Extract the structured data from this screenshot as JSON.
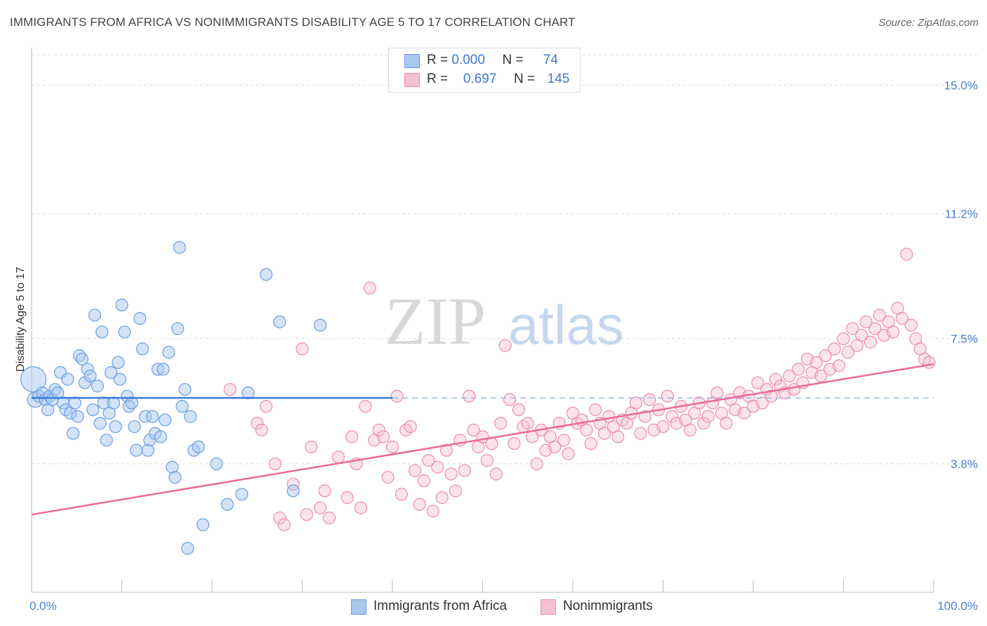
{
  "title": "IMMIGRANTS FROM AFRICA VS NONIMMIGRANTS DISABILITY AGE 5 TO 17 CORRELATION CHART",
  "source": "Source: ZipAtlas.com",
  "watermark": {
    "zip": "ZIP",
    "atlas": "atlas"
  },
  "legend": {
    "r_label": "R =",
    "n_label": "N =",
    "series1": {
      "r": "0.000",
      "n": "74"
    },
    "series2": {
      "r": "0.697",
      "n": "145"
    }
  },
  "bottom_legend": {
    "series1": "Immigrants from Africa",
    "series2": "Nonimmigrants"
  },
  "colors": {
    "series1_fill": "#a9c8ef",
    "series1_stroke": "#6a9fe0",
    "series1_line": "#3a7ad6",
    "series2_fill": "#f7c0d2",
    "series2_stroke": "#ec8cad",
    "series2_line": "#e8699a",
    "tick_text": "#4a7fd0",
    "grid": "#dddddd"
  },
  "chart_data": {
    "type": "scatter",
    "title": "IMMIGRANTS FROM AFRICA VS NONIMMIGRANTS DISABILITY AGE 5 TO 17 CORRELATION CHART",
    "xlabel": "",
    "ylabel": "Disability Age 5 to 17",
    "xlim": [
      0,
      100
    ],
    "ylim": [
      0,
      15.9
    ],
    "x_tick_labels": [
      "0.0%",
      "100.0%"
    ],
    "y_ticks": [
      3.8,
      7.5,
      11.2,
      15.0
    ],
    "y_tick_labels": [
      "3.8%",
      "7.5%",
      "11.2%",
      "15.0%"
    ],
    "grid": true,
    "legend_position": "top-center",
    "series": [
      {
        "name": "Immigrants from Africa",
        "r": 0.0,
        "n": 74,
        "trend": {
          "x": [
            0,
            40
          ],
          "y": [
            5.75,
            5.75
          ]
        },
        "trend_extension": {
          "x": [
            40,
            100
          ],
          "y": [
            5.75,
            5.75
          ]
        },
        "points": [
          [
            0.2,
            6.3
          ],
          [
            0.4,
            5.7
          ],
          [
            0.8,
            5.8
          ],
          [
            1.2,
            5.9
          ],
          [
            1.5,
            5.7
          ],
          [
            1.8,
            5.4
          ],
          [
            2.0,
            5.8
          ],
          [
            2.3,
            5.7
          ],
          [
            2.6,
            6.0
          ],
          [
            2.9,
            5.9
          ],
          [
            3.2,
            6.5
          ],
          [
            3.5,
            5.6
          ],
          [
            3.8,
            5.4
          ],
          [
            4.0,
            6.3
          ],
          [
            4.3,
            5.3
          ],
          [
            4.6,
            4.7
          ],
          [
            4.8,
            5.6
          ],
          [
            5.1,
            5.2
          ],
          [
            5.3,
            7.0
          ],
          [
            5.6,
            6.9
          ],
          [
            5.9,
            6.2
          ],
          [
            6.2,
            6.6
          ],
          [
            6.5,
            6.4
          ],
          [
            6.8,
            5.4
          ],
          [
            7.0,
            8.2
          ],
          [
            7.3,
            6.1
          ],
          [
            7.6,
            5.0
          ],
          [
            7.8,
            7.7
          ],
          [
            8.0,
            5.6
          ],
          [
            8.3,
            4.5
          ],
          [
            8.6,
            5.3
          ],
          [
            8.8,
            6.5
          ],
          [
            9.1,
            5.6
          ],
          [
            9.3,
            4.9
          ],
          [
            9.6,
            6.8
          ],
          [
            9.8,
            6.3
          ],
          [
            10.0,
            8.5
          ],
          [
            10.3,
            7.7
          ],
          [
            10.6,
            5.8
          ],
          [
            10.8,
            5.5
          ],
          [
            11.1,
            5.6
          ],
          [
            11.4,
            4.9
          ],
          [
            11.6,
            4.2
          ],
          [
            12.0,
            8.1
          ],
          [
            12.3,
            7.2
          ],
          [
            12.6,
            5.2
          ],
          [
            12.9,
            4.2
          ],
          [
            13.1,
            4.5
          ],
          [
            13.4,
            5.2
          ],
          [
            13.7,
            4.7
          ],
          [
            14.0,
            6.6
          ],
          [
            14.3,
            4.6
          ],
          [
            14.6,
            6.6
          ],
          [
            14.8,
            5.1
          ],
          [
            15.2,
            7.1
          ],
          [
            15.6,
            3.7
          ],
          [
            15.9,
            3.4
          ],
          [
            16.2,
            7.8
          ],
          [
            16.4,
            10.2
          ],
          [
            16.7,
            5.5
          ],
          [
            17.0,
            6.0
          ],
          [
            17.3,
            1.3
          ],
          [
            17.6,
            5.2
          ],
          [
            18.0,
            4.2
          ],
          [
            18.5,
            4.3
          ],
          [
            19.0,
            2.0
          ],
          [
            20.5,
            3.8
          ],
          [
            21.7,
            2.6
          ],
          [
            23.3,
            2.9
          ],
          [
            24.0,
            5.9
          ],
          [
            26.0,
            9.4
          ],
          [
            27.5,
            8.0
          ],
          [
            29.0,
            3.0
          ],
          [
            32.0,
            7.9
          ]
        ]
      },
      {
        "name": "Nonimmigrants",
        "r": 0.697,
        "n": 145,
        "trend": {
          "x": [
            0,
            100
          ],
          "y": [
            2.3,
            6.75
          ]
        },
        "points": [
          [
            22,
            6.0
          ],
          [
            25,
            5.0
          ],
          [
            25.5,
            4.8
          ],
          [
            26,
            5.5
          ],
          [
            27,
            3.8
          ],
          [
            27.5,
            2.2
          ],
          [
            28,
            2.0
          ],
          [
            29,
            3.2
          ],
          [
            30,
            7.2
          ],
          [
            30.5,
            2.3
          ],
          [
            31,
            4.3
          ],
          [
            32,
            2.5
          ],
          [
            32.5,
            3.0
          ],
          [
            33,
            2.2
          ],
          [
            34,
            4.0
          ],
          [
            35,
            2.8
          ],
          [
            35.5,
            4.6
          ],
          [
            36,
            3.8
          ],
          [
            36.5,
            2.5
          ],
          [
            37,
            5.5
          ],
          [
            37.5,
            9.0
          ],
          [
            38,
            4.5
          ],
          [
            38.5,
            4.8
          ],
          [
            39,
            4.6
          ],
          [
            39.5,
            3.4
          ],
          [
            40,
            4.3
          ],
          [
            40.5,
            5.8
          ],
          [
            41,
            2.9
          ],
          [
            41.5,
            4.8
          ],
          [
            42,
            4.9
          ],
          [
            42.5,
            3.6
          ],
          [
            43,
            2.6
          ],
          [
            43.5,
            3.3
          ],
          [
            44,
            3.9
          ],
          [
            44.5,
            2.4
          ],
          [
            45,
            3.7
          ],
          [
            45.5,
            2.8
          ],
          [
            46,
            4.2
          ],
          [
            46.5,
            3.5
          ],
          [
            47,
            3.0
          ],
          [
            47.5,
            4.5
          ],
          [
            48,
            3.6
          ],
          [
            48.5,
            5.8
          ],
          [
            49,
            4.8
          ],
          [
            49.5,
            4.3
          ],
          [
            50,
            4.6
          ],
          [
            50.5,
            3.9
          ],
          [
            51,
            4.4
          ],
          [
            51.5,
            3.5
          ],
          [
            52,
            5.0
          ],
          [
            52.5,
            7.3
          ],
          [
            53,
            5.7
          ],
          [
            53.5,
            4.4
          ],
          [
            54,
            5.4
          ],
          [
            54.5,
            4.9
          ],
          [
            55,
            5.0
          ],
          [
            55.5,
            4.6
          ],
          [
            56,
            3.8
          ],
          [
            56.5,
            4.8
          ],
          [
            57,
            4.2
          ],
          [
            57.5,
            4.6
          ],
          [
            58,
            4.3
          ],
          [
            58.5,
            5.0
          ],
          [
            59,
            4.5
          ],
          [
            59.5,
            4.1
          ],
          [
            60,
            5.3
          ],
          [
            60.5,
            5.0
          ],
          [
            61,
            5.1
          ],
          [
            61.5,
            4.8
          ],
          [
            62,
            4.4
          ],
          [
            62.5,
            5.4
          ],
          [
            63,
            5.0
          ],
          [
            63.5,
            4.7
          ],
          [
            64,
            5.2
          ],
          [
            64.5,
            4.9
          ],
          [
            65,
            4.6
          ],
          [
            65.5,
            5.1
          ],
          [
            66,
            5.0
          ],
          [
            66.5,
            5.3
          ],
          [
            67,
            5.6
          ],
          [
            67.5,
            4.7
          ],
          [
            68,
            5.2
          ],
          [
            68.5,
            5.7
          ],
          [
            69,
            4.8
          ],
          [
            69.5,
            5.4
          ],
          [
            70,
            4.9
          ],
          [
            70.5,
            5.8
          ],
          [
            71,
            5.2
          ],
          [
            71.5,
            5.0
          ],
          [
            72,
            5.5
          ],
          [
            72.5,
            5.1
          ],
          [
            73,
            4.8
          ],
          [
            73.5,
            5.3
          ],
          [
            74,
            5.6
          ],
          [
            74.5,
            5.0
          ],
          [
            75,
            5.2
          ],
          [
            75.5,
            5.6
          ],
          [
            76,
            5.9
          ],
          [
            76.5,
            5.3
          ],
          [
            77,
            5.0
          ],
          [
            77.5,
            5.7
          ],
          [
            78,
            5.4
          ],
          [
            78.5,
            5.9
          ],
          [
            79,
            5.3
          ],
          [
            79.5,
            5.8
          ],
          [
            80,
            5.5
          ],
          [
            80.5,
            6.2
          ],
          [
            81,
            5.6
          ],
          [
            81.5,
            6.0
          ],
          [
            82,
            5.8
          ],
          [
            82.5,
            6.3
          ],
          [
            83,
            6.1
          ],
          [
            83.5,
            5.9
          ],
          [
            84,
            6.4
          ],
          [
            84.5,
            6.0
          ],
          [
            85,
            6.6
          ],
          [
            85.5,
            6.2
          ],
          [
            86,
            6.9
          ],
          [
            86.5,
            6.5
          ],
          [
            87,
            6.8
          ],
          [
            87.5,
            6.4
          ],
          [
            88,
            7.0
          ],
          [
            88.5,
            6.6
          ],
          [
            89,
            7.2
          ],
          [
            89.5,
            6.7
          ],
          [
            90,
            7.5
          ],
          [
            90.5,
            7.1
          ],
          [
            91,
            7.8
          ],
          [
            91.5,
            7.3
          ],
          [
            92,
            7.6
          ],
          [
            92.5,
            8.0
          ],
          [
            93,
            7.4
          ],
          [
            93.5,
            7.8
          ],
          [
            94,
            8.2
          ],
          [
            94.5,
            7.6
          ],
          [
            95,
            8.0
          ],
          [
            95.5,
            7.7
          ],
          [
            96,
            8.4
          ],
          [
            96.5,
            8.1
          ],
          [
            97,
            10.0
          ],
          [
            97.5,
            7.9
          ],
          [
            98,
            7.5
          ],
          [
            98.5,
            7.2
          ],
          [
            99,
            6.9
          ],
          [
            99.5,
            6.8
          ]
        ]
      }
    ]
  }
}
